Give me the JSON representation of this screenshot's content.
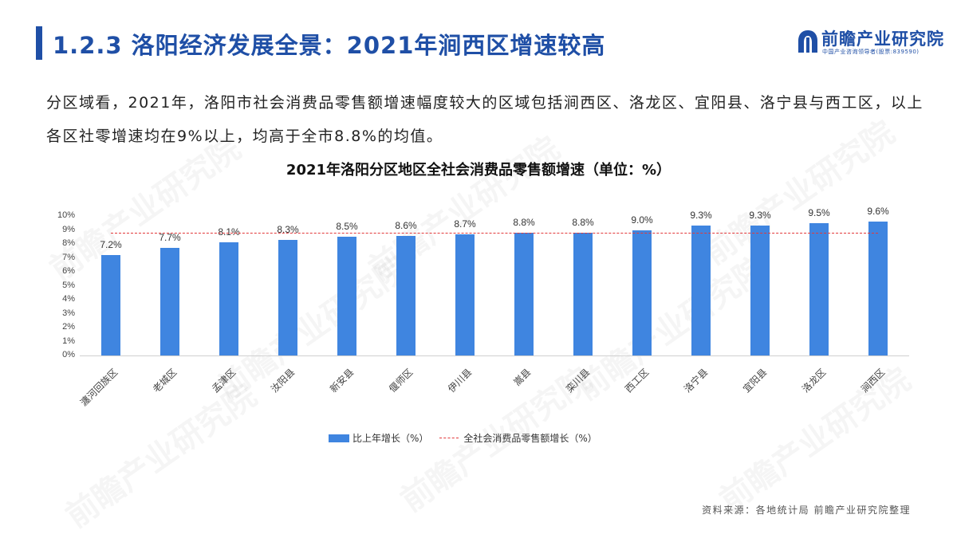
{
  "header": {
    "title": "1.2.3 洛阳经济发展全景：2021年涧西区增速较高",
    "accent_color": "#1f4fa6"
  },
  "logo": {
    "name": "前瞻产业研究院",
    "subtitle": "中国产业咨询领导者(股票:839590)",
    "icon": "qianzhan-logo-icon"
  },
  "summary": {
    "text": "分区域看，2021年，洛阳市社会消费品零售额增速幅度较大的区域包括涧西区、洛龙区、宜阳县、洛宁县与西工区，以上各区社零增速均在9%以上，均高于全市8.8%的均值。"
  },
  "chart_data": {
    "type": "bar",
    "title": "2021年洛阳分区地区全社会消费品零售额增速（单位：%）",
    "categories": [
      "瀍河回族区",
      "老城区",
      "孟津区",
      "汝阳县",
      "新安县",
      "偃师区",
      "伊川县",
      "嵩县",
      "栾川县",
      "西工区",
      "洛宁县",
      "宜阳县",
      "洛龙区",
      "涧西区"
    ],
    "series": [
      {
        "name": "比上年增长（%）",
        "type": "bar",
        "color": "#3f85e0",
        "values": [
          7.2,
          7.7,
          8.1,
          8.3,
          8.5,
          8.6,
          8.7,
          8.8,
          8.8,
          9.0,
          9.3,
          9.3,
          9.5,
          9.6
        ],
        "labels": [
          "7.2%",
          "7.7%",
          "8.1%",
          "8.3%",
          "8.5%",
          "8.6%",
          "8.7%",
          "8.8%",
          "8.8%",
          "9.0%",
          "9.3%",
          "9.3%",
          "9.5%",
          "9.6%"
        ]
      },
      {
        "name": "全社会消费品零售额增长（%）",
        "type": "line",
        "style": "dashed",
        "color": "#e2383a",
        "value": 8.8
      }
    ],
    "xlabel": "",
    "ylabel": "",
    "ylim": [
      0,
      10
    ],
    "yticks": [
      "10%",
      "9%",
      "8%",
      "7%",
      "6%",
      "5%",
      "4%",
      "3%",
      "2%",
      "1%",
      "0%"
    ],
    "grid": false,
    "legend_position": "bottom"
  },
  "source": "资料来源：各地统计局 前瞻产业研究院整理",
  "watermark": "前瞻产业研究院"
}
